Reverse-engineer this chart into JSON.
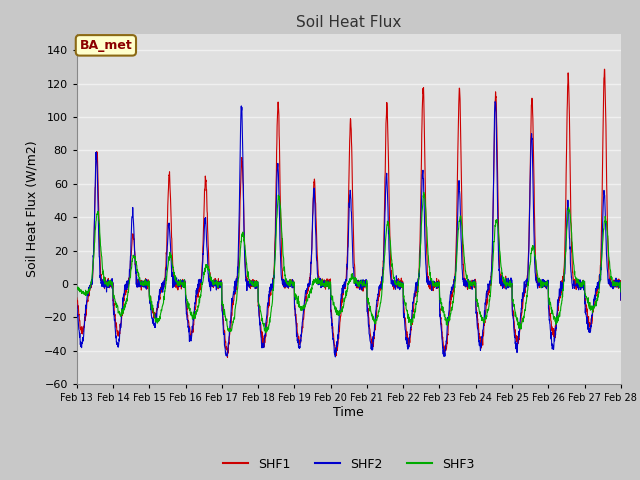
{
  "title": "Soil Heat Flux",
  "xlabel": "Time",
  "ylabel": "Soil Heat Flux (W/m2)",
  "ylim": [
    -60,
    150
  ],
  "yticks": [
    -60,
    -40,
    -20,
    0,
    20,
    40,
    60,
    80,
    100,
    120,
    140
  ],
  "date_labels": [
    "Feb 13",
    "Feb 14",
    "Feb 15",
    "Feb 16",
    "Feb 17",
    "Feb 18",
    "Feb 19",
    "Feb 20",
    "Feb 21",
    "Feb 22",
    "Feb 23",
    "Feb 24",
    "Feb 25",
    "Feb 26",
    "Feb 27",
    "Feb 28"
  ],
  "colors": {
    "SHF1": "#cc0000",
    "SHF2": "#0000cc",
    "SHF3": "#00aa00"
  },
  "legend_label": "BA_met",
  "fig_bg": "#c8c8c8",
  "plot_bg": "#e0e0e0",
  "grid_color": "#f0f0f0",
  "n_days": 15,
  "points_per_day": 144,
  "shf1_peaks": [
    80,
    30,
    65,
    63,
    75,
    108,
    62,
    97,
    106,
    117,
    116,
    114,
    111,
    124,
    127
  ],
  "shf1_troughs": [
    -28,
    -30,
    -20,
    -30,
    -40,
    -35,
    -35,
    -40,
    -35,
    -35,
    -40,
    -35,
    -35,
    -30,
    -25
  ],
  "shf2_peaks": [
    78,
    42,
    35,
    38,
    107,
    72,
    55,
    55,
    65,
    67,
    59,
    112,
    90,
    48,
    55
  ],
  "shf2_troughs": [
    -37,
    -37,
    -25,
    -33,
    -43,
    -38,
    -38,
    -42,
    -38,
    -38,
    -42,
    -38,
    -38,
    -38,
    -28
  ],
  "shf3_peaks": [
    43,
    18,
    18,
    12,
    32,
    54,
    3,
    5,
    38,
    55,
    42,
    40,
    24,
    46,
    40
  ],
  "shf3_troughs": [
    -6,
    -18,
    -22,
    -20,
    -28,
    -28,
    -15,
    -18,
    -22,
    -22,
    -22,
    -22,
    -25,
    -22,
    -15
  ]
}
